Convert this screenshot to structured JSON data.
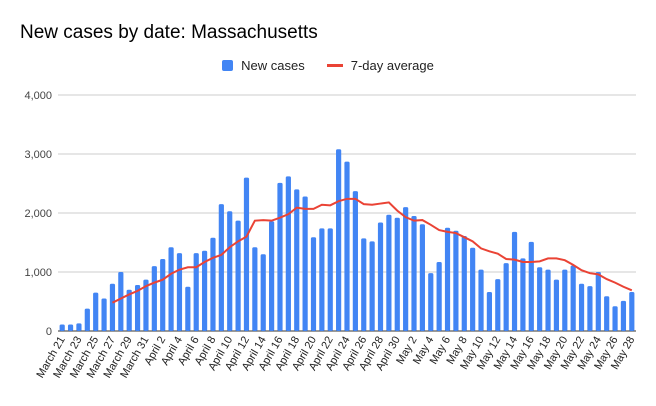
{
  "chart_data": {
    "type": "bar",
    "title": "New cases by date: Massachusetts",
    "xlabel": "",
    "ylabel": "",
    "ylim": [
      0,
      4000
    ],
    "yticks": [
      "0",
      "1,000",
      "2,000",
      "3,000",
      "4,000"
    ],
    "ytick_values": [
      0,
      1000,
      2000,
      3000,
      4000
    ],
    "legend_position": "top-center",
    "grid": true,
    "categories": [
      "March 21",
      "March 22",
      "March 23",
      "March 24",
      "March 25",
      "March 26",
      "March 27",
      "March 28",
      "March 29",
      "March 30",
      "March 31",
      "April 1",
      "April 2",
      "April 3",
      "April 4",
      "April 5",
      "April 6",
      "April 7",
      "April 8",
      "April 9",
      "April 10",
      "April 11",
      "April 12",
      "April 13",
      "April 14",
      "April 15",
      "April 16",
      "April 17",
      "April 18",
      "April 19",
      "April 20",
      "April 21",
      "April 22",
      "April 23",
      "April 24",
      "April 25",
      "April 26",
      "April 27",
      "April 28",
      "April 29",
      "April 30",
      "May 1",
      "May 2",
      "May 3",
      "May 4",
      "May 5",
      "May 6",
      "May 7",
      "May 8",
      "May 9",
      "May 10",
      "May 11",
      "May 12",
      "May 13",
      "May 14",
      "May 15",
      "May 16",
      "May 17",
      "May 18",
      "May 19",
      "May 20",
      "May 21",
      "May 22",
      "May 23",
      "May 24",
      "May 25",
      "May 26",
      "May 27",
      "May 28"
    ],
    "series": [
      {
        "name": "New cases",
        "type": "bar",
        "color": "#4285f4",
        "values": [
          110,
          110,
          130,
          380,
          650,
          550,
          800,
          1000,
          700,
          780,
          870,
          1100,
          1220,
          1420,
          1320,
          750,
          1320,
          1360,
          1580,
          2150,
          2030,
          1870,
          2600,
          1420,
          1300,
          1860,
          2510,
          2620,
          2400,
          2280,
          1590,
          1740,
          1740,
          3080,
          2870,
          2370,
          1570,
          1520,
          1840,
          1970,
          1920,
          2100,
          1950,
          1810,
          980,
          1170,
          1750,
          1700,
          1610,
          1410,
          1040,
          660,
          880,
          1150,
          1680,
          1230,
          1510,
          1080,
          1040,
          870,
          1040,
          1110,
          800,
          760,
          1000,
          590,
          420,
          510,
          660
        ]
      },
      {
        "name": "7-day average",
        "type": "line",
        "color": "#ea4335",
        "values": [
          null,
          null,
          null,
          null,
          null,
          null,
          480,
          550,
          620,
          680,
          760,
          820,
          870,
          970,
          1040,
          1080,
          1080,
          1170,
          1240,
          1290,
          1420,
          1520,
          1600,
          1870,
          1880,
          1870,
          1920,
          1980,
          2090,
          2070,
          2070,
          2140,
          2130,
          2200,
          2240,
          2240,
          2150,
          2140,
          2160,
          2180,
          2040,
          1930,
          1870,
          1880,
          1800,
          1710,
          1680,
          1660,
          1590,
          1520,
          1400,
          1350,
          1310,
          1220,
          1210,
          1170,
          1170,
          1180,
          1230,
          1230,
          1200,
          1120,
          1030,
          980,
          960,
          880,
          820,
          750,
          690
        ]
      }
    ]
  }
}
